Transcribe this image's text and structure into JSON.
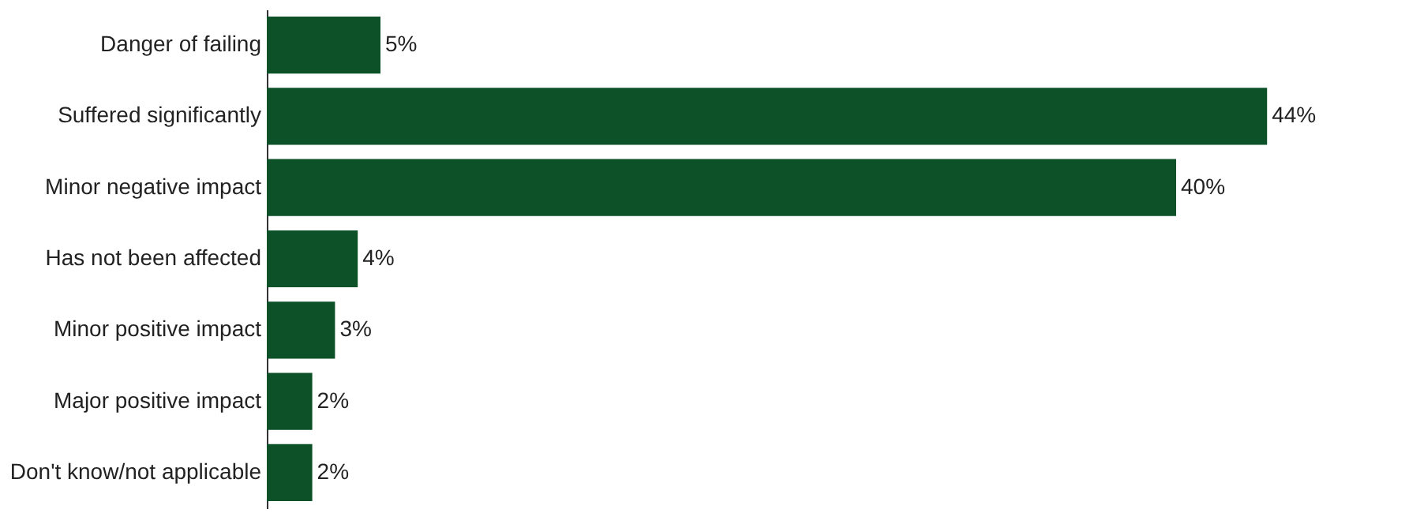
{
  "chart_data": {
    "type": "bar",
    "orientation": "horizontal",
    "categories": [
      "Danger of failing",
      "Suffered significantly",
      "Minor negative impact",
      "Has not been affected",
      "Minor positive impact",
      "Major positive impact",
      "Don't know/not applicable"
    ],
    "values": [
      5,
      44,
      40,
      4,
      3,
      2,
      2
    ],
    "value_labels": [
      "5%",
      "44%",
      "40%",
      "4%",
      "3%",
      "2%",
      "2%"
    ],
    "color": "#0d5128"
  }
}
